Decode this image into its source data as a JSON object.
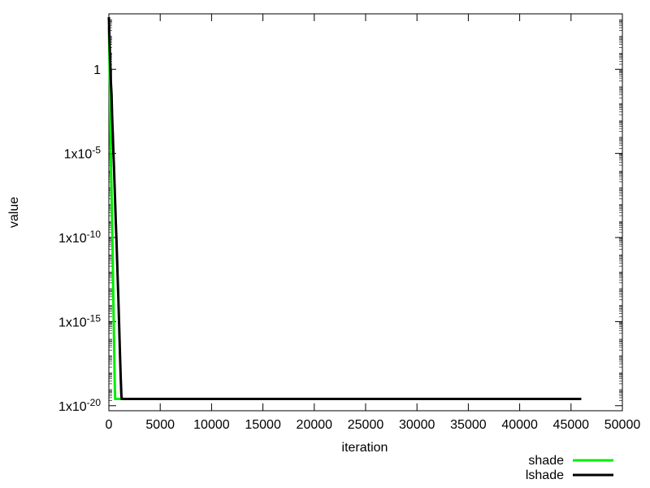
{
  "chart_data": {
    "type": "line",
    "title": "",
    "xlabel": "iteration",
    "ylabel": "value",
    "xlim": [
      0,
      50000
    ],
    "ylim_log10": [
      -20.3,
      3.3
    ],
    "yscale": "log",
    "grid": false,
    "legend_position": "bottom-right",
    "x_ticks": [
      0,
      5000,
      10000,
      15000,
      20000,
      25000,
      30000,
      35000,
      40000,
      45000,
      50000
    ],
    "x_tick_labels": [
      "0",
      "5000",
      "10000",
      "15000",
      "20000",
      "25000",
      "30000",
      "35000",
      "40000",
      "45000",
      "50000"
    ],
    "y_ticks": [
      {
        "exp": 0,
        "label": "1",
        "base": "1",
        "sup": ""
      },
      {
        "exp": -5,
        "label": "1x10-5",
        "base": "1x10",
        "sup": "-5"
      },
      {
        "exp": -10,
        "label": "1x10-10",
        "base": "1x10",
        "sup": "-10"
      },
      {
        "exp": -15,
        "label": "1x10-15",
        "base": "1x10",
        "sup": "-15"
      },
      {
        "exp": -20,
        "label": "1x10-20",
        "base": "1x10",
        "sup": "-20"
      }
    ],
    "series": [
      {
        "name": "shade",
        "color": "#00ee00",
        "points": [
          [
            0,
            2.5
          ],
          [
            30,
            1.5
          ],
          [
            60,
            0.3
          ],
          [
            100,
            -1.0
          ],
          [
            130,
            -2.5
          ],
          [
            160,
            -4.2
          ],
          [
            200,
            -5.5
          ],
          [
            230,
            -6.5
          ],
          [
            270,
            -7.6
          ],
          [
            300,
            -8.8
          ],
          [
            340,
            -10.0
          ],
          [
            380,
            -11.5
          ],
          [
            420,
            -13.0
          ],
          [
            460,
            -14.5
          ],
          [
            500,
            -16.0
          ],
          [
            540,
            -17.5
          ],
          [
            580,
            -18.9
          ],
          [
            620,
            -19.6
          ],
          [
            700,
            -19.6
          ],
          [
            900,
            -19.6
          ],
          [
            46000,
            -19.6
          ]
        ]
      },
      {
        "name": "lshade",
        "color": "#000000",
        "points": [
          [
            0,
            3.1
          ],
          [
            40,
            2.2
          ],
          [
            100,
            1.0
          ],
          [
            150,
            0.2
          ],
          [
            200,
            -0.8
          ],
          [
            260,
            -1.5
          ],
          [
            320,
            -2.8
          ],
          [
            380,
            -3.8
          ],
          [
            440,
            -5.0
          ],
          [
            500,
            -5.8
          ],
          [
            560,
            -7.0
          ],
          [
            620,
            -8.0
          ],
          [
            680,
            -9.2
          ],
          [
            740,
            -10.2
          ],
          [
            800,
            -11.3
          ],
          [
            860,
            -12.5
          ],
          [
            920,
            -13.5
          ],
          [
            980,
            -14.8
          ],
          [
            1040,
            -16.0
          ],
          [
            1100,
            -17.3
          ],
          [
            1160,
            -18.5
          ],
          [
            1220,
            -19.4
          ],
          [
            1260,
            -19.6
          ],
          [
            2000,
            -19.6
          ],
          [
            46000,
            -19.6
          ]
        ]
      }
    ]
  }
}
